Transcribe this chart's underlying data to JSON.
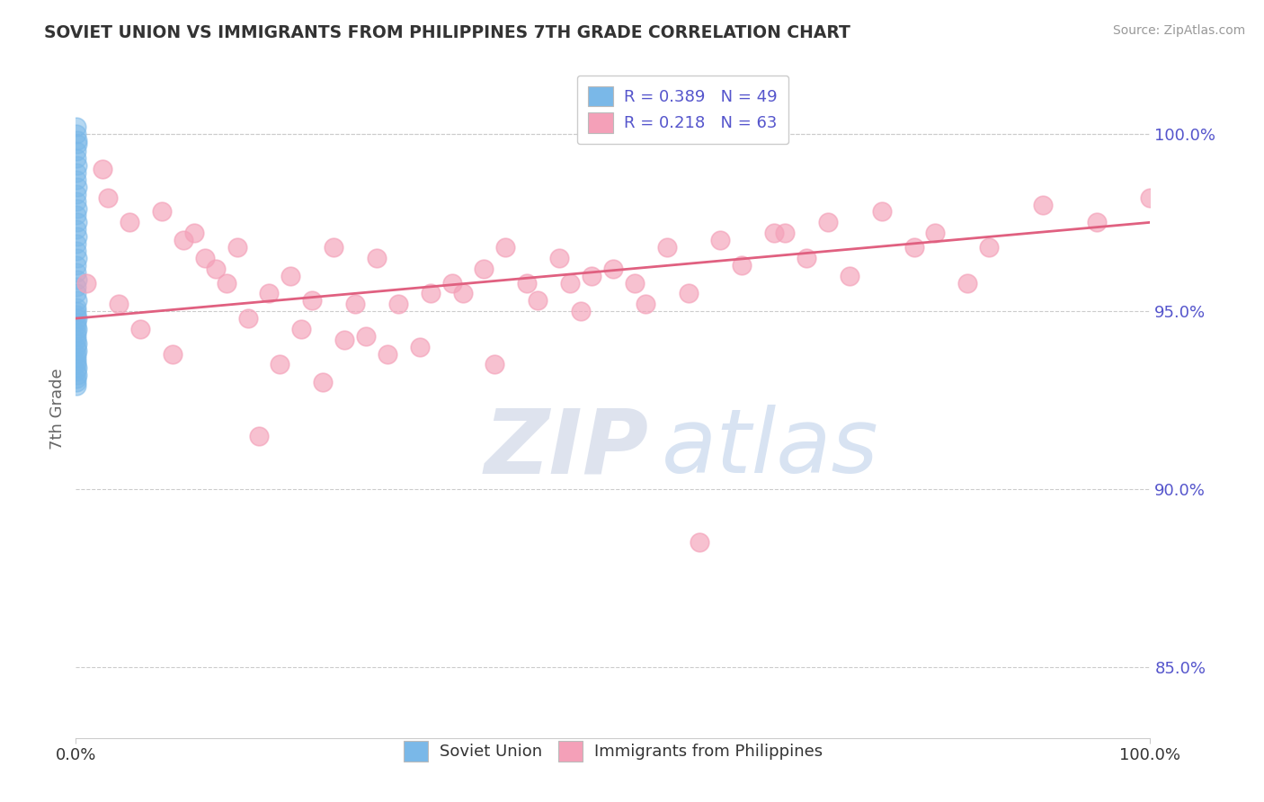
{
  "title": "SOVIET UNION VS IMMIGRANTS FROM PHILIPPINES 7TH GRADE CORRELATION CHART",
  "source_text": "Source: ZipAtlas.com",
  "ylabel": "7th Grade",
  "xlim": [
    0.0,
    100.0
  ],
  "ylim": [
    83.0,
    101.5
  ],
  "right_yticks": [
    85.0,
    90.0,
    95.0,
    100.0
  ],
  "right_yticklabels": [
    "85.0%",
    "90.0%",
    "95.0%",
    "100.0%"
  ],
  "legend_blue_r": "R = 0.389",
  "legend_blue_n": "N = 49",
  "legend_pink_r": "R = 0.218",
  "legend_pink_n": "N = 63",
  "legend_label1": "Soviet Union",
  "legend_label2": "Immigrants from Philippines",
  "blue_color": "#7ab8e8",
  "pink_color": "#f4a0b8",
  "blue_scatter_x": [
    0.05,
    0.08,
    0.1,
    0.12,
    0.06,
    0.09,
    0.11,
    0.07,
    0.08,
    0.1,
    0.06,
    0.09,
    0.12,
    0.07,
    0.1,
    0.08,
    0.11,
    0.09,
    0.06,
    0.1,
    0.07,
    0.08,
    0.11,
    0.09,
    0.06,
    0.1,
    0.08,
    0.07,
    0.09,
    0.11,
    0.06,
    0.08,
    0.1,
    0.07,
    0.09,
    0.06,
    0.11,
    0.08,
    0.1,
    0.07,
    0.09,
    0.06,
    0.08,
    0.11,
    0.07,
    0.1,
    0.09,
    0.06,
    0.08
  ],
  "blue_scatter_y": [
    100.2,
    100.0,
    99.8,
    99.7,
    99.5,
    99.3,
    99.1,
    98.9,
    98.7,
    98.5,
    98.3,
    98.1,
    97.9,
    97.7,
    97.5,
    97.3,
    97.1,
    96.9,
    96.7,
    96.5,
    96.3,
    96.1,
    95.9,
    95.7,
    95.5,
    95.3,
    95.1,
    95.0,
    94.9,
    94.8,
    94.7,
    94.6,
    94.5,
    94.4,
    94.3,
    94.2,
    94.1,
    94.0,
    93.9,
    93.8,
    93.7,
    93.6,
    93.5,
    93.4,
    93.3,
    93.2,
    93.1,
    93.0,
    92.9
  ],
  "pink_scatter_x": [
    1.0,
    3.0,
    5.0,
    2.5,
    8.0,
    12.0,
    4.0,
    10.0,
    6.0,
    15.0,
    18.0,
    9.0,
    13.0,
    16.0,
    20.0,
    22.0,
    25.0,
    11.0,
    14.0,
    19.0,
    28.0,
    30.0,
    24.0,
    33.0,
    17.0,
    35.0,
    27.0,
    38.0,
    21.0,
    40.0,
    32.0,
    45.0,
    26.0,
    23.0,
    42.0,
    50.0,
    36.0,
    29.0,
    48.0,
    55.0,
    43.0,
    60.0,
    39.0,
    65.0,
    52.0,
    47.0,
    70.0,
    57.0,
    75.0,
    62.0,
    46.0,
    80.0,
    68.0,
    53.0,
    85.0,
    72.0,
    90.0,
    78.0,
    66.0,
    83.0,
    95.0,
    58.0,
    100.0
  ],
  "pink_scatter_y": [
    95.8,
    98.2,
    97.5,
    99.0,
    97.8,
    96.5,
    95.2,
    97.0,
    94.5,
    96.8,
    95.5,
    93.8,
    96.2,
    94.8,
    96.0,
    95.3,
    94.2,
    97.2,
    95.8,
    93.5,
    96.5,
    95.2,
    96.8,
    95.5,
    91.5,
    95.8,
    94.3,
    96.2,
    94.5,
    96.8,
    94.0,
    96.5,
    95.2,
    93.0,
    95.8,
    96.2,
    95.5,
    93.8,
    96.0,
    96.8,
    95.3,
    97.0,
    93.5,
    97.2,
    95.8,
    95.0,
    97.5,
    95.5,
    97.8,
    96.3,
    95.8,
    97.2,
    96.5,
    95.2,
    96.8,
    96.0,
    98.0,
    96.8,
    97.2,
    95.8,
    97.5,
    88.5,
    98.2
  ],
  "pink_trend_x": [
    0.0,
    100.0
  ],
  "pink_trend_y": [
    94.8,
    97.5
  ],
  "watermark_zip": "ZIP",
  "watermark_atlas": "atlas",
  "background_color": "#ffffff",
  "grid_color": "#cccccc",
  "title_color": "#333333",
  "axis_label_color": "#666666",
  "tick_color_right": "#5555cc",
  "legend_text_color": "#5555cc"
}
